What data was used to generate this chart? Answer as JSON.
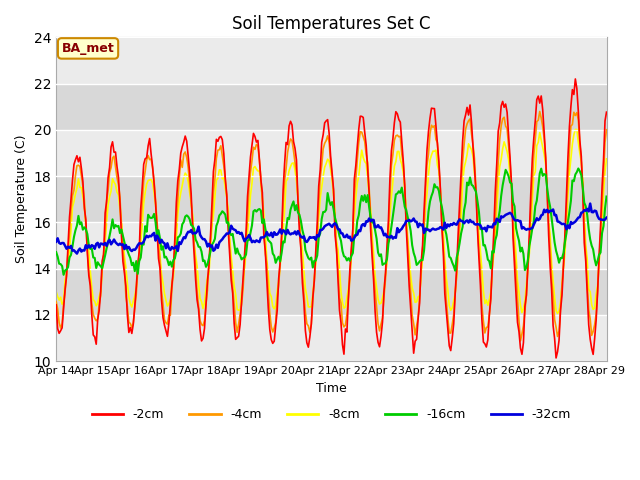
{
  "title": "Soil Temperatures Set C",
  "xlabel": "Time",
  "ylabel": "Soil Temperature (C)",
  "ylim": [
    10,
    24
  ],
  "yticks": [
    10,
    12,
    14,
    16,
    18,
    20,
    22,
    24
  ],
  "x_labels": [
    "Apr 14",
    "Apr 15",
    "Apr 16",
    "Apr 17",
    "Apr 18",
    "Apr 19",
    "Apr 20",
    "Apr 21",
    "Apr 22",
    "Apr 23",
    "Apr 24",
    "Apr 25",
    "Apr 26",
    "Apr 27",
    "Apr 28",
    "Apr 29"
  ],
  "annotation_text": "BA_met",
  "annotation_bg": "#ffffcc",
  "annotation_border": "#cc8800",
  "annotation_text_color": "#880000",
  "line_colors": {
    "-2cm": "#ff0000",
    "-4cm": "#ff9900",
    "-8cm": "#ffff00",
    "-16cm": "#00cc00",
    "-32cm": "#0000dd"
  },
  "legend_entries": [
    "-2cm",
    "-4cm",
    "-8cm",
    "-16cm",
    "-32cm"
  ],
  "plot_bg_light": "#ebebeb",
  "plot_bg_dark": "#d8d8d8",
  "n_days": 15.5,
  "hours_per_day": 24
}
